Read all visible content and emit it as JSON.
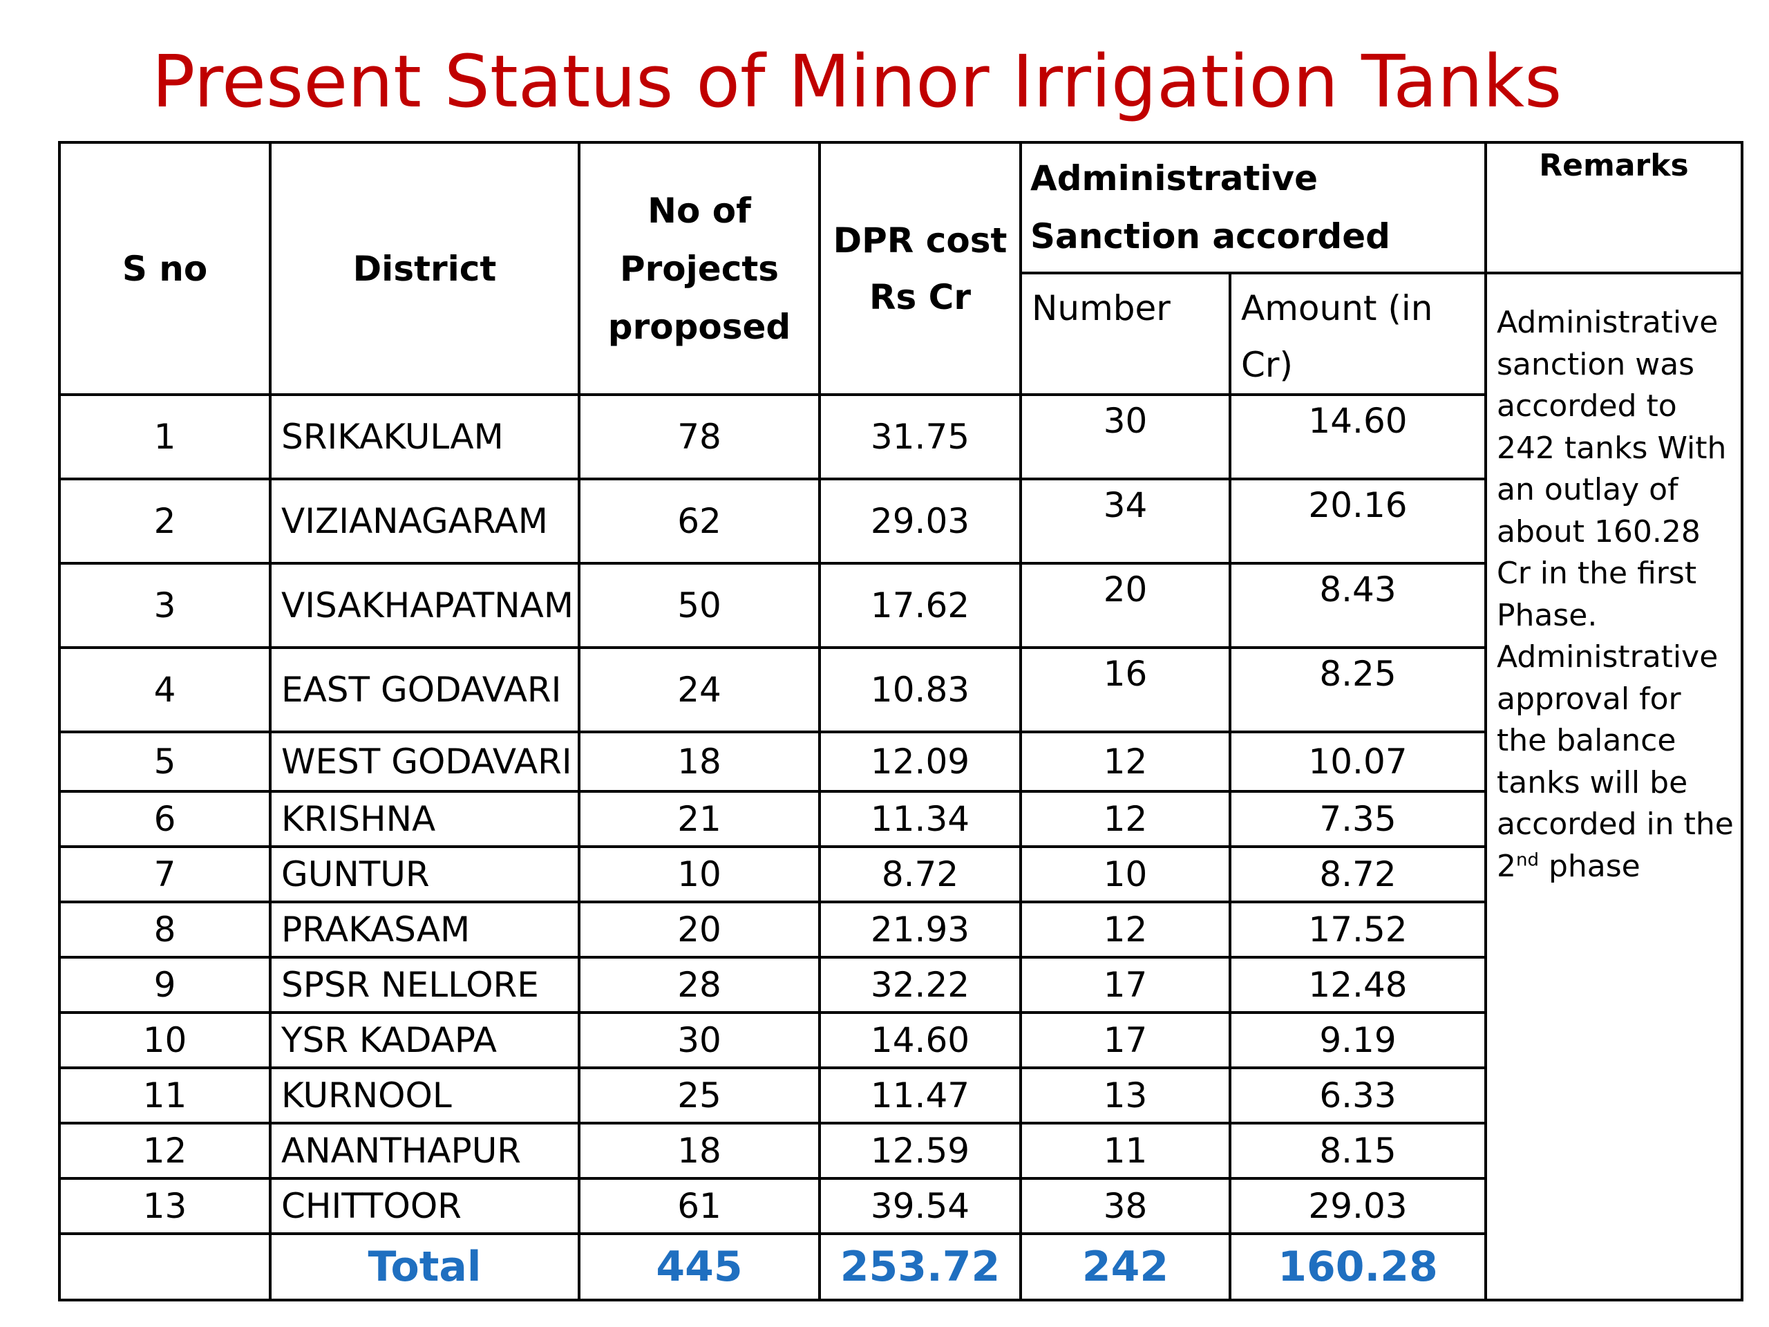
{
  "title": "Present Status of Minor Irrigation Tanks",
  "colors": {
    "title": "#c00000",
    "total": "#1f6fc0"
  },
  "headers": {
    "sno": "S no",
    "district": "District",
    "projects": "No of Projects proposed",
    "dpr": "DPR cost Rs Cr",
    "adm": "Administrative Sanction accorded",
    "remarks": "Remarks",
    "number": "Number",
    "amount": "Amount (in Cr)"
  },
  "rows": [
    {
      "sno": "1",
      "district": "SRIKAKULAM",
      "projects": "78",
      "dpr": "31.75",
      "number": "30",
      "amount": "14.60"
    },
    {
      "sno": "2",
      "district": "VIZIANAGARAM",
      "projects": "62",
      "dpr": "29.03",
      "number": "34",
      "amount": "20.16"
    },
    {
      "sno": "3",
      "district": "VISAKHAPATNAM",
      "projects": "50",
      "dpr": "17.62",
      "number": "20",
      "amount": "8.43"
    },
    {
      "sno": "4",
      "district": "EAST GODAVARI",
      "projects": "24",
      "dpr": "10.83",
      "number": "16",
      "amount": "8.25"
    },
    {
      "sno": "5",
      "district": "WEST GODAVARI",
      "projects": "18",
      "dpr": "12.09",
      "number": "12",
      "amount": "10.07"
    },
    {
      "sno": "6",
      "district": "KRISHNA",
      "projects": "21",
      "dpr": "11.34",
      "number": "12",
      "amount": "7.35"
    },
    {
      "sno": "7",
      "district": "GUNTUR",
      "projects": "10",
      "dpr": "8.72",
      "number": "10",
      "amount": "8.72"
    },
    {
      "sno": "8",
      "district": "PRAKASAM",
      "projects": "20",
      "dpr": "21.93",
      "number": "12",
      "amount": "17.52"
    },
    {
      "sno": "9",
      "district": "SPSR NELLORE",
      "projects": "28",
      "dpr": "32.22",
      "number": "17",
      "amount": "12.48"
    },
    {
      "sno": "10",
      "district": "YSR KADAPA",
      "projects": "30",
      "dpr": "14.60",
      "number": "17",
      "amount": "9.19"
    },
    {
      "sno": "11",
      "district": "KURNOOL",
      "projects": "25",
      "dpr": "11.47",
      "number": "13",
      "amount": "6.33"
    },
    {
      "sno": "12",
      "district": "ANANTHAPUR",
      "projects": "18",
      "dpr": "12.59",
      "number": "11",
      "amount": "8.15"
    },
    {
      "sno": "13",
      "district": "CHITTOOR",
      "projects": "61",
      "dpr": "39.54",
      "number": "38",
      "amount": "29.03"
    }
  ],
  "total": {
    "label": "Total",
    "projects": "445",
    "dpr": "253.72",
    "number": "242",
    "amount": "160.28"
  },
  "remarks": {
    "text_main": "Administrative sanction was accorded to 242 tanks With an outlay of about 160.28 Cr in the first Phase. Administrative approval for the balance tanks will be accorded in the 2",
    "sup": "nd",
    "text_end": " phase"
  }
}
